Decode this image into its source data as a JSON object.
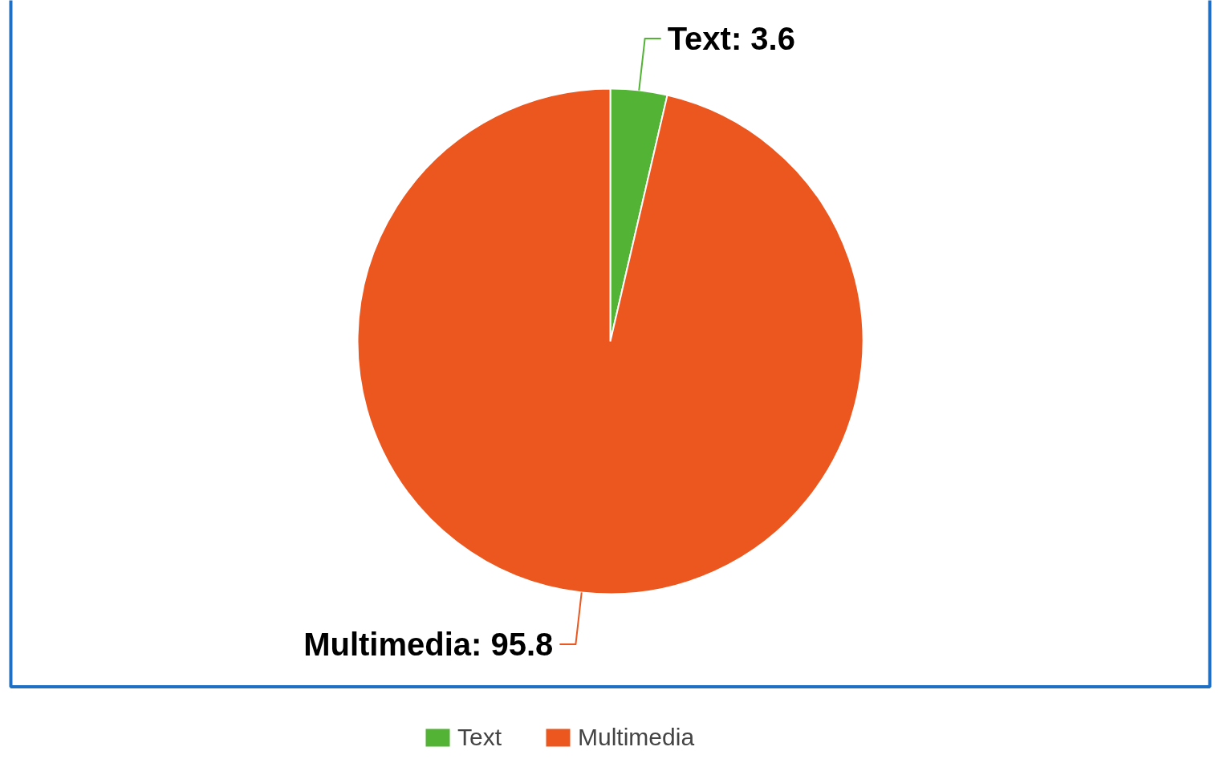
{
  "chart_data": {
    "type": "pie",
    "categories": [
      "Text",
      "Multimedia"
    ],
    "values": [
      3.6,
      95.8
    ],
    "value_labels": [
      "Text: 3.6",
      "Multimedia: 95.8"
    ],
    "colors": [
      "#52b335",
      "#eb571f"
    ],
    "legend": "bottom"
  }
}
